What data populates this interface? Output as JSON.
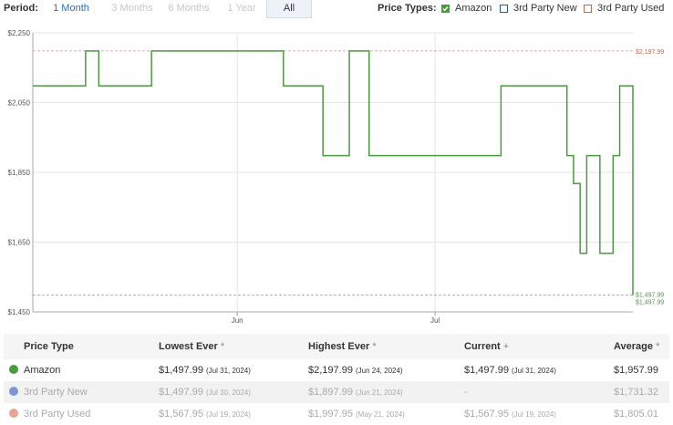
{
  "header": {
    "period_label": "Period:",
    "period_tabs": [
      {
        "label": "1 Month",
        "state": "enabled"
      },
      {
        "label": "3 Months",
        "state": "disabled"
      },
      {
        "label": "6 Months",
        "state": "disabled"
      },
      {
        "label": "1 Year",
        "state": "disabled"
      },
      {
        "label": "All",
        "state": "active"
      }
    ],
    "price_types_label": "Price Types:",
    "price_types": [
      {
        "label": "Amazon",
        "checked": true,
        "color": "#4a9a3f"
      },
      {
        "label": "3rd Party New",
        "checked": false,
        "color": "#2c4f9e"
      },
      {
        "label": "3rd Party Used",
        "checked": false,
        "color": "#c46a4f"
      }
    ]
  },
  "chart_data": {
    "type": "line",
    "title": "",
    "xlabel": "",
    "ylabel": "",
    "x_start": "2024-05-01",
    "x_end": "2024-07-31",
    "x_ticks": [
      {
        "label": "Jun",
        "date": "2024-06-01"
      },
      {
        "label": "Jul",
        "date": "2024-07-01"
      }
    ],
    "ylim": [
      1450,
      2250
    ],
    "y_ticks": [
      "$2,250",
      "$2,050",
      "$1,850",
      "$1,650",
      "$1,450"
    ],
    "y_tick_values": [
      2250,
      2050,
      1850,
      1650,
      1450
    ],
    "grid": true,
    "series": [
      {
        "name": "Amazon",
        "color": "#4a9a3f",
        "step": true,
        "x": [
          "2024-05-01",
          "2024-05-09",
          "2024-05-11",
          "2024-05-19",
          "2024-06-08",
          "2024-06-14",
          "2024-06-18",
          "2024-06-21",
          "2024-06-22",
          "2024-07-11",
          "2024-07-21",
          "2024-07-22",
          "2024-07-23",
          "2024-07-24",
          "2024-07-26",
          "2024-07-28",
          "2024-07-28",
          "2024-07-29",
          "2024-07-30",
          "2024-07-31",
          "2024-07-31"
        ],
        "y": [
          2097.99,
          2197.99,
          2097.99,
          2197.99,
          2097.99,
          1897.99,
          2197.99,
          1897.99,
          1897.99,
          2097.99,
          1897.99,
          1817.99,
          1617.99,
          1897.99,
          1617.99,
          1617.99,
          1897.99,
          2097.99,
          2097.99,
          1497.99,
          1497.99
        ]
      }
    ],
    "reference_lines": [
      {
        "label": "$2,197.99",
        "value": 2197.99,
        "color": "#c46a4f",
        "dashed": true
      },
      {
        "label": "$1,497.99",
        "value": 1497.99,
        "color": "#4a9a3f",
        "dashed": true
      }
    ],
    "end_labels": [
      "$1,497.99",
      "$1,497.99"
    ]
  },
  "table": {
    "headers": [
      "Price Type",
      "Lowest Ever",
      "Highest Ever",
      "Current",
      "Average"
    ],
    "header_marks": [
      "",
      "*",
      "*",
      "+",
      "*"
    ],
    "rows": [
      {
        "type": "Amazon",
        "color": "#4a9a3f",
        "lowest": "$1,497.99",
        "lowest_date": "(Jul 31, 2024)",
        "highest": "$2,197.99",
        "highest_date": "(Jun 24, 2024)",
        "current": "$1,497.99",
        "current_date": "(Jul 31, 2024)",
        "average": "$1,957.99"
      },
      {
        "type": "3rd Party New",
        "color": "#7f95d6",
        "lowest": "$1,497.99",
        "lowest_date": "(Jul 30, 2024)",
        "highest": "$1,897.99",
        "highest_date": "(Jun 21, 2024)",
        "current": "-",
        "current_date": "",
        "average": "$1,731.32"
      },
      {
        "type": "3rd Party Used",
        "color": "#e8a494",
        "lowest": "$1,567.95",
        "lowest_date": "(Jul 19, 2024)",
        "highest": "$1,997.95",
        "highest_date": "(May 21, 2024)",
        "current": "$1,567.95",
        "current_date": "(Jul 19, 2024)",
        "average": "$1,805.01"
      }
    ]
  }
}
